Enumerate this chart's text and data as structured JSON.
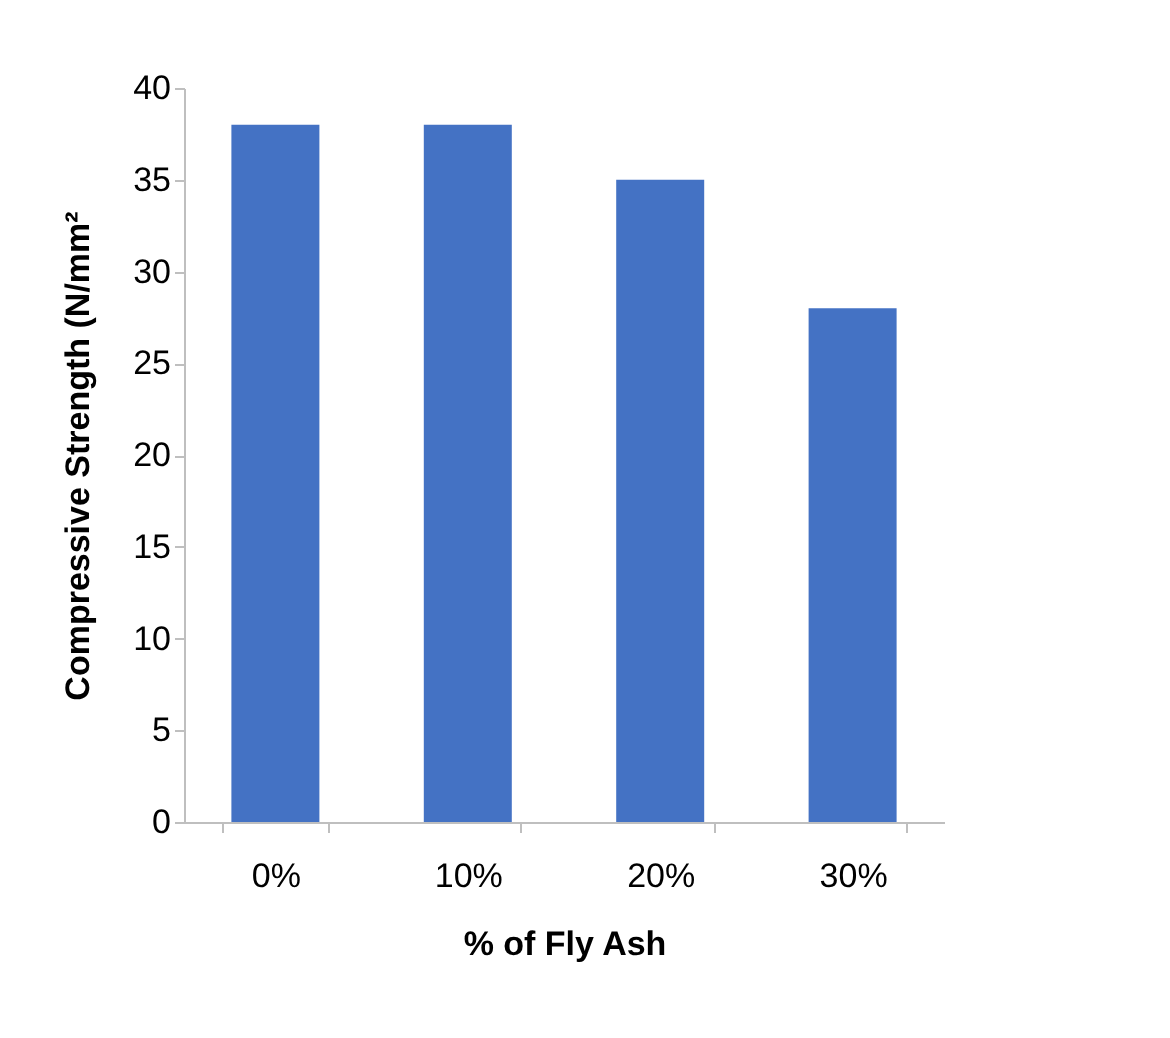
{
  "chart_data": {
    "type": "bar",
    "xlabel": "% of Fly Ash",
    "ylabel": "Compressive Strength (N/mm²",
    "categories": [
      "0%",
      "10%",
      "20%",
      "30%"
    ],
    "values": [
      38,
      38,
      35,
      28
    ],
    "color": "#4472c4",
    "ylim": [
      0,
      40
    ],
    "yticks": [
      0,
      5,
      10,
      15,
      20,
      25,
      30,
      35,
      40
    ],
    "grid": false
  }
}
